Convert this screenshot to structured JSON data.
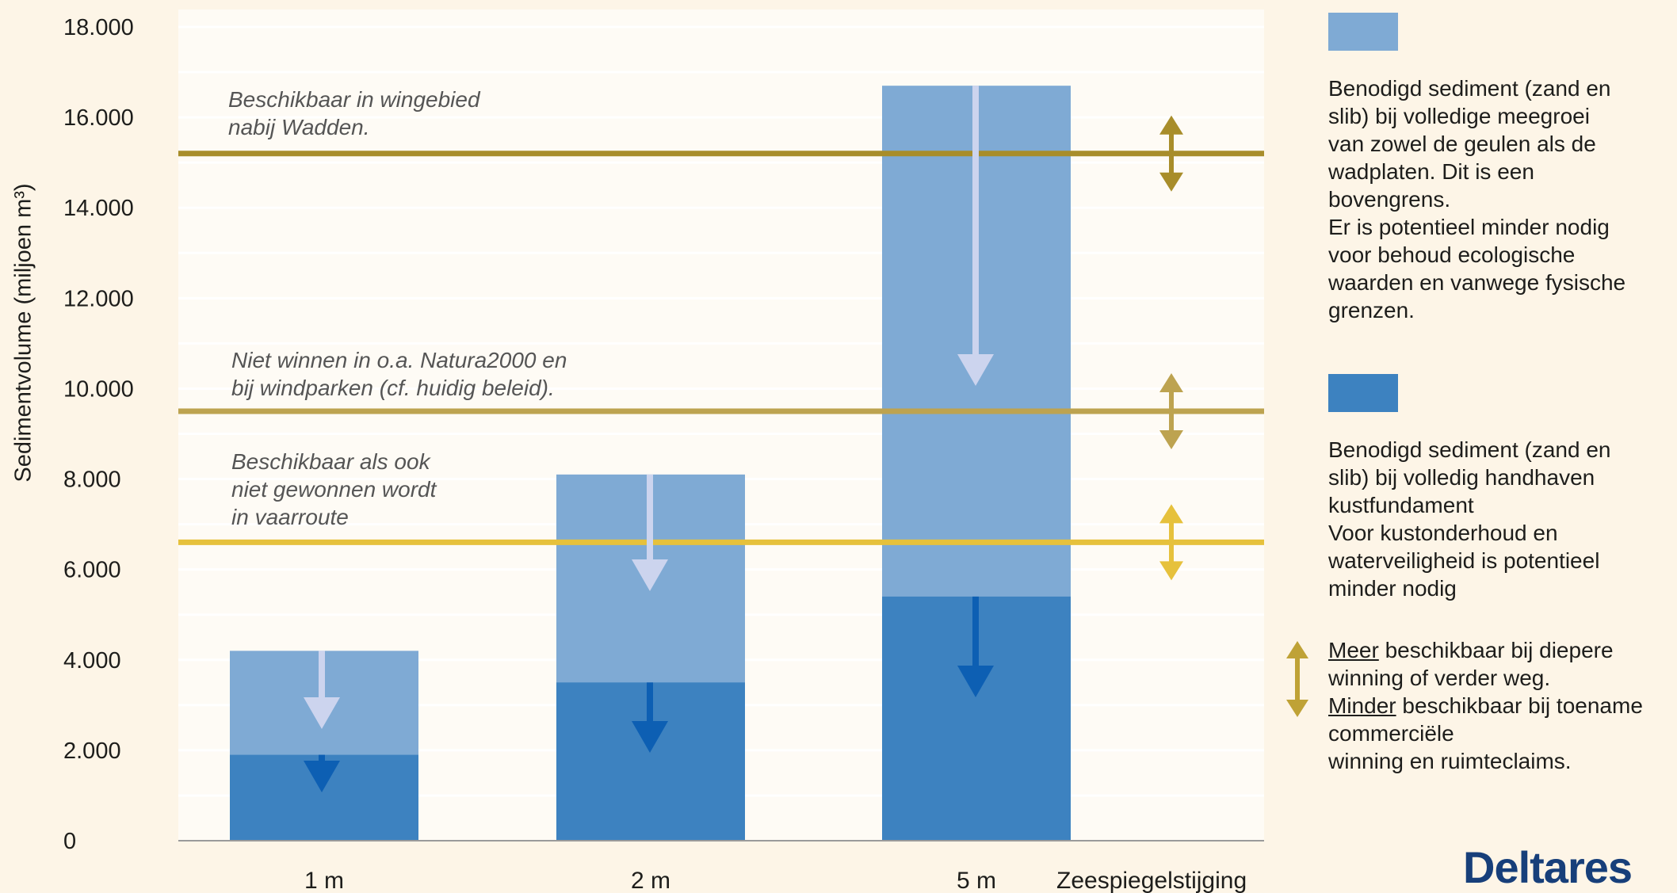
{
  "chart_data": {
    "type": "bar",
    "categories": [
      "1 m",
      "2 m",
      "5 m"
    ],
    "xlabel": "Zeespiegelstijging",
    "ylabel": "Sedimentvolume (miljoen m³)",
    "ylim": [
      0,
      18000
    ],
    "yticks": [
      0,
      2000,
      4000,
      6000,
      8000,
      10000,
      12000,
      14000,
      16000,
      18000
    ],
    "ytick_labels": [
      "0",
      "2.000",
      "4.000",
      "6.000",
      "8.000",
      "10.000",
      "12.000",
      "14.000",
      "16.000",
      "18.000"
    ],
    "grid": true,
    "stacked": false,
    "series": [
      {
        "name": "Benodigd sediment (zand en slib) bij volledige meegroei van zowel de geulen als de wadplaten",
        "values": [
          4200,
          8100,
          16700
        ],
        "color": "#7faad4"
      },
      {
        "name": "Benodigd sediment (zand en slib) bij volledig handhaven kustfundament",
        "values": [
          1900,
          3500,
          5400
        ],
        "color": "#3d82c0"
      }
    ],
    "reference_lines": [
      {
        "value": 15200,
        "label_lines": [
          "Beschikbaar in wingebied",
          "nabij Wadden."
        ],
        "color": "#a88d2a"
      },
      {
        "value": 9500,
        "label_lines": [
          "Niet winnen in o.a. Natura2000 en",
          "bij windparken (cf. huidig beleid)."
        ],
        "color": "#bda350"
      },
      {
        "value": 6600,
        "label_lines": [
          "Beschikbaar als ook",
          "niet gewonnen wordt",
          "in vaarroute"
        ],
        "color": "#e6c13c"
      }
    ],
    "downward_arrow_note": "arrows indicate potentially less needed",
    "legend_position": "right"
  },
  "legend": {
    "light": {
      "lines": [
        "Benodigd sediment (zand en",
        "slib) bij volledige meegroei",
        "van zowel de geulen als de",
        "wadplaten. Dit is een",
        "bovengrens.",
        "Er is potentieel minder nodig",
        "voor behoud ecologische",
        "waarden en vanwege fysische",
        "grenzen."
      ],
      "color": "#7faad4"
    },
    "dark": {
      "lines": [
        "Benodigd sediment (zand en",
        "slib) bij volledig handhaven",
        "kustfundament",
        "Voor kustonderhoud en",
        "waterveiligheid is potentieel",
        "minder nodig"
      ],
      "color": "#3d82c0"
    },
    "arrow": {
      "more_word": "Meer",
      "more_rest": " beschikbaar bij diepere",
      "line2": "winning of verder weg.",
      "less_word": "Minder",
      "less_rest": " beschikbaar bij toename",
      "line4": "commerciële",
      "line5": "winning en ruimteclaims.",
      "color": "#bfa236"
    }
  },
  "logo": {
    "text": "Deltares"
  },
  "colors": {
    "background": "#fdf5e7",
    "grid": "#ffffff",
    "axis": "#9a9a9a",
    "arrow_light": "#ccd4ee",
    "arrow_dark": "#0d5fb3"
  }
}
